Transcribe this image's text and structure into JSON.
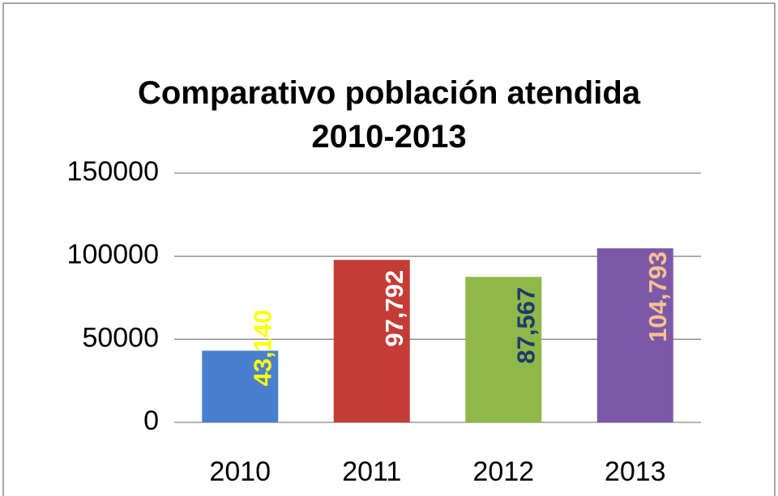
{
  "chart_data": {
    "type": "bar",
    "title": "Comparativo población atendida 2010-2013",
    "categories": [
      "2010",
      "2011",
      "2012",
      "2013"
    ],
    "values": [
      43140,
      97792,
      87567,
      104793
    ],
    "value_labels": [
      "43,140",
      "97,792",
      "87,567",
      "104,793"
    ],
    "colors": [
      "#4a7fcf",
      "#c43c35",
      "#8fb848",
      "#7b59a8"
    ],
    "label_colors": [
      "#ffff00",
      "#ffffff",
      "#1f3a6e",
      "#fac090"
    ],
    "ylim": [
      0,
      150000
    ],
    "yticks": [
      0,
      50000,
      100000,
      150000
    ],
    "grid": true
  }
}
